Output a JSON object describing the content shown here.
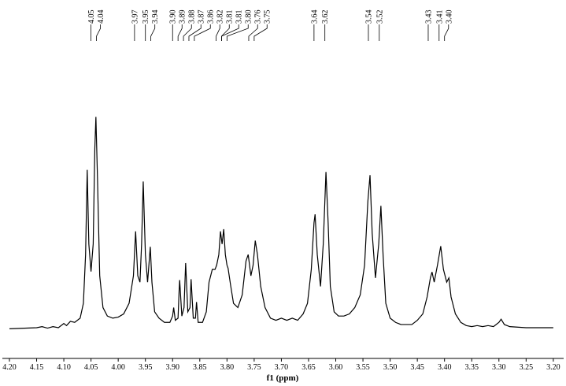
{
  "chart_data": {
    "type": "line",
    "color": "#000000",
    "x_label": "f1 (ppm)",
    "xlim": [
      4.213,
      3.181
    ],
    "ylim": [
      -14,
      104
    ],
    "xticks": [
      {
        "value": 4.2,
        "label": "4.20"
      },
      4.15,
      {
        "value": 4.1,
        "label": "4.10"
      },
      4.05,
      {
        "value": 4.0,
        "label": "4.00"
      },
      3.95,
      {
        "value": 3.9,
        "label": "3.90"
      },
      3.85,
      {
        "value": 3.8,
        "label": "3.80"
      },
      3.75,
      {
        "value": 3.7,
        "label": "3.70"
      },
      3.65,
      {
        "value": 3.6,
        "label": "3.60"
      },
      3.55,
      {
        "value": 3.5,
        "label": "3.50"
      },
      3.45,
      {
        "value": 3.4,
        "label": "3.40"
      },
      3.35,
      {
        "value": 3.3,
        "label": "3.30"
      },
      3.25,
      {
        "value": 3.2,
        "label": "3.20"
      }
    ],
    "peak_labels": [
      4.05,
      4.04,
      3.97,
      3.95,
      3.94,
      {
        "value": 3.9,
        "label": "3.90"
      },
      3.89,
      3.88,
      3.87,
      3.86,
      3.82,
      3.81,
      3.81,
      {
        "value": 3.8,
        "label": "3.80"
      },
      3.76,
      3.75,
      3.64,
      3.62,
      3.54,
      3.52,
      3.43,
      3.41,
      {
        "value": 3.4,
        "label": "3.40"
      }
    ],
    "x": [
      4.2,
      4.15,
      4.14,
      4.13,
      4.12,
      4.11,
      4.1,
      4.095,
      4.088,
      4.08,
      4.07,
      4.064,
      4.06,
      4.057,
      4.054,
      4.05,
      4.046,
      4.043,
      4.041,
      4.038,
      4.034,
      4.028,
      4.02,
      4.01,
      4.0,
      3.99,
      3.98,
      3.972,
      3.968,
      3.964,
      3.96,
      3.957,
      3.954,
      3.95,
      3.946,
      3.943,
      3.941,
      3.938,
      3.933,
      3.925,
      3.915,
      3.905,
      3.9,
      3.898,
      3.895,
      3.89,
      3.888,
      3.887,
      3.883,
      3.879,
      3.876,
      3.872,
      3.868,
      3.866,
      3.862,
      3.858,
      3.856,
      3.853,
      3.845,
      3.838,
      3.833,
      3.827,
      3.822,
      3.819,
      3.815,
      3.812,
      3.809,
      3.806,
      3.803,
      3.8,
      3.798,
      3.793,
      3.788,
      3.78,
      3.772,
      3.765,
      3.761,
      3.756,
      3.752,
      3.748,
      3.744,
      3.738,
      3.73,
      3.72,
      3.71,
      3.7,
      3.69,
      3.68,
      3.67,
      3.66,
      3.652,
      3.645,
      3.64,
      3.638,
      3.634,
      3.628,
      3.623,
      3.618,
      3.614,
      3.61,
      3.603,
      3.595,
      3.585,
      3.575,
      3.565,
      3.555,
      3.547,
      3.541,
      3.537,
      3.533,
      3.527,
      3.521,
      3.517,
      3.513,
      3.508,
      3.5,
      3.49,
      3.48,
      3.47,
      3.46,
      3.45,
      3.44,
      3.432,
      3.426,
      3.423,
      3.419,
      3.413,
      3.407,
      3.402,
      3.396,
      3.392,
      3.388,
      3.38,
      3.37,
      3.36,
      3.35,
      3.34,
      3.33,
      3.32,
      3.31,
      3.3,
      3.296,
      3.29,
      3.28,
      3.25,
      3.2
    ],
    "values": [
      0,
      0.5,
      1,
      0.3,
      1,
      0.5,
      2.5,
      1.5,
      3.5,
      3,
      5,
      12,
      35,
      75,
      40,
      27,
      40,
      85,
      100,
      70,
      25,
      10,
      6,
      5,
      5.5,
      7,
      12,
      25,
      46,
      25,
      22,
      40,
      69.5,
      35,
      22,
      32,
      38.7,
      22,
      8,
      5,
      3,
      3,
      6,
      10,
      4,
      5,
      18,
      23,
      6,
      10,
      31,
      8,
      10,
      23.4,
      5,
      5,
      12.6,
      3,
      3,
      8,
      22,
      28,
      28,
      30,
      35,
      46,
      40,
      47,
      35,
      30,
      28.6,
      20,
      12,
      10,
      16,
      32,
      35,
      25,
      30,
      41.6,
      35,
      20,
      10,
      5,
      4,
      5,
      4,
      5,
      4,
      7,
      12,
      28,
      50,
      54,
      35,
      20,
      40,
      74,
      50,
      20,
      8,
      6,
      6,
      7,
      10,
      16,
      30,
      60,
      72.5,
      45,
      24,
      40,
      58,
      35,
      12,
      5,
      3,
      2,
      2,
      2,
      4,
      7,
      15,
      24,
      26.8,
      22,
      30,
      39,
      28,
      22,
      24,
      15,
      7,
      3,
      1.5,
      1,
      1.5,
      1,
      1.5,
      1,
      3,
      4.5,
      2,
      1,
      0.5,
      0.5
    ]
  }
}
